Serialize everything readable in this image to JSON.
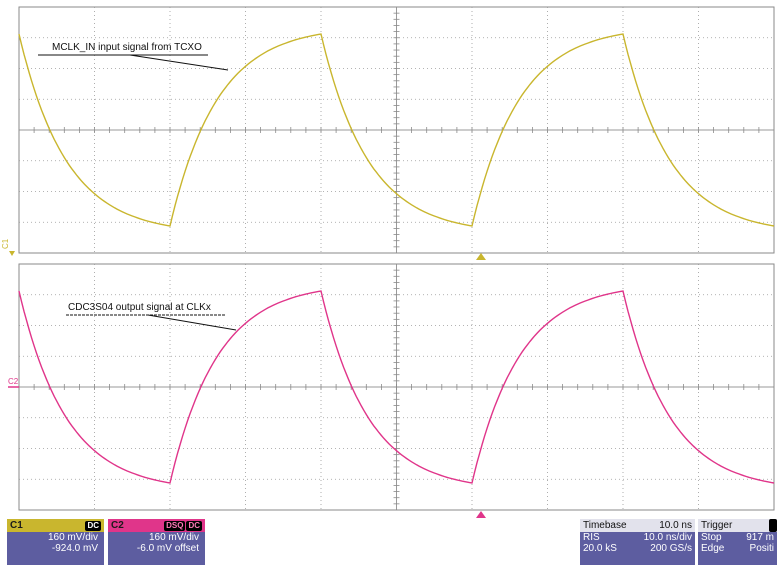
{
  "colors": {
    "c1": "#c9b62e",
    "c2": "#e0358a",
    "grid": "#8a8a8a",
    "panel": "#5d5da0"
  },
  "chart_data": [
    {
      "type": "line",
      "channel_label": "C1",
      "series": [
        {
          "x": [
            0,
            20,
            40,
            60,
            80,
            100
          ],
          "values": [
            1,
            -1,
            1,
            -1,
            1,
            -1
          ]
        }
      ],
      "annotation": "MCLK_IN input signal from TCXO"
    },
    {
      "type": "line",
      "channel_label": "C2",
      "series": [
        {
          "x": [
            0,
            20,
            40,
            60,
            80,
            100
          ],
          "values": [
            1,
            -1,
            1,
            -1,
            1,
            -1
          ]
        }
      ],
      "annotation": "CDC3S04 output signal at CLKx"
    }
  ],
  "status": {
    "c1": {
      "label": "C1",
      "coupling": "DC",
      "scale": "160 mV/div",
      "offset": "-924.0 mV"
    },
    "c2": {
      "label": "C2",
      "badge1": "DSQ",
      "badge2": "DC",
      "scale": "160 mV/div",
      "offset": "-6.0 mV offset"
    },
    "timebase": {
      "label": "Timebase",
      "value": "10.0 ns",
      "r1_left": "RIS",
      "r1_right": "10.0 ns/div",
      "r2_left": "20.0 kS",
      "r2_right": "200 GS/s"
    },
    "trigger": {
      "label": "Trigger",
      "r1_left": "Stop",
      "r1_right": "917 m",
      "r2_left": "Edge",
      "r2_right": "Positi"
    }
  }
}
